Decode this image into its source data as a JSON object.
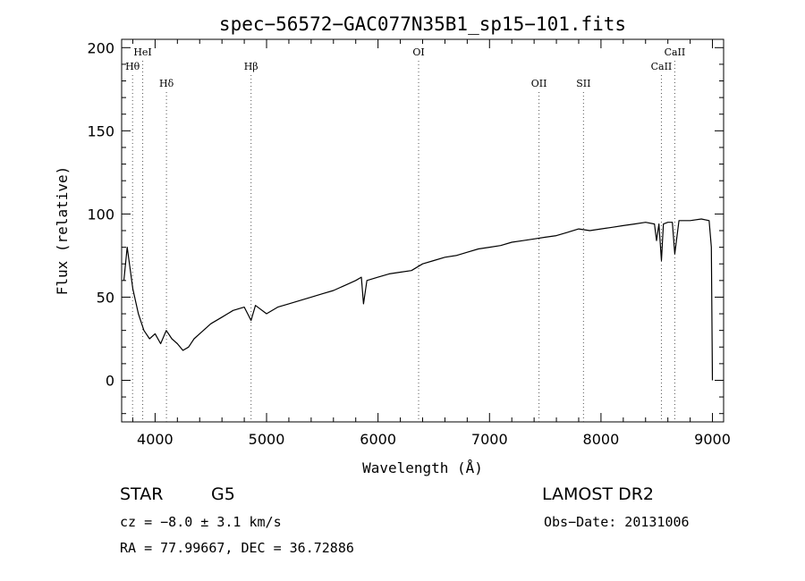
{
  "chart_data": {
    "type": "line",
    "title": "spec−56572−GAC077N35B1_sp15−101.fits",
    "xlabel": "Wavelength (Å)",
    "ylabel": "Flux (relative)",
    "xlim": [
      3700,
      9100
    ],
    "ylim": [
      -25,
      205
    ],
    "xticks": [
      4000,
      5000,
      6000,
      7000,
      8000,
      9000
    ],
    "yticks": [
      0,
      50,
      100,
      150,
      200
    ],
    "grid": false,
    "series": [
      {
        "x": [
          3720,
          3750,
          3800,
          3850,
          3900,
          3950,
          4000,
          4050,
          4100,
          4150,
          4200,
          4250,
          4300,
          4350,
          4400,
          4500,
          4600,
          4700,
          4800,
          4861,
          4900,
          5000,
          5100,
          5200,
          5300,
          5400,
          5500,
          5600,
          5700,
          5800,
          5850,
          5870,
          5900,
          6000,
          6100,
          6200,
          6300,
          6400,
          6500,
          6600,
          6700,
          6800,
          6900,
          7000,
          7100,
          7200,
          7300,
          7400,
          7500,
          7600,
          7700,
          7800,
          7900,
          8000,
          8100,
          8200,
          8300,
          8400,
          8480,
          8498,
          8520,
          8542,
          8560,
          8600,
          8640,
          8662,
          8700,
          8800,
          8900,
          8970,
          8990,
          9000
        ],
        "y": [
          60,
          80,
          55,
          40,
          30,
          25,
          28,
          22,
          30,
          25,
          22,
          18,
          20,
          25,
          28,
          34,
          38,
          42,
          44,
          36,
          45,
          40,
          44,
          46,
          48,
          50,
          52,
          54,
          57,
          60,
          62,
          46,
          60,
          62,
          64,
          65,
          66,
          70,
          72,
          74,
          75,
          77,
          79,
          80,
          81,
          83,
          84,
          85,
          86,
          87,
          89,
          91,
          90,
          91,
          92,
          93,
          94,
          95,
          94,
          84,
          94,
          72,
          94,
          95,
          95,
          76,
          96,
          96,
          97,
          96,
          80,
          0
        ]
      }
    ],
    "lines": [
      {
        "label": "Hθ",
        "wavelength": 3798,
        "row": "2"
      },
      {
        "label": "HeI",
        "wavelength": 3889,
        "row": "1"
      },
      {
        "label": "Hδ",
        "wavelength": 4102,
        "row": "3"
      },
      {
        "label": "Hβ",
        "wavelength": 4861,
        "row": "2"
      },
      {
        "label": "OI",
        "wavelength": 6364,
        "row": "1"
      },
      {
        "label": "OII",
        "wavelength": 7444,
        "row": "3"
      },
      {
        "label": "SII",
        "wavelength": 7843,
        "row": "3"
      },
      {
        "label": "CaII",
        "wavelength": 8542,
        "row": "2"
      },
      {
        "label": "CaII",
        "wavelength": 8662,
        "row": "1"
      }
    ]
  },
  "info": {
    "object_class": "STAR",
    "subclass": "G5",
    "survey": "LAMOST DR2",
    "cz": "cz = −8.0 ± 3.1 km/s",
    "obs_date": "Obs−Date: 20131006",
    "coords": "RA =  77.99667, DEC =  36.72886"
  }
}
